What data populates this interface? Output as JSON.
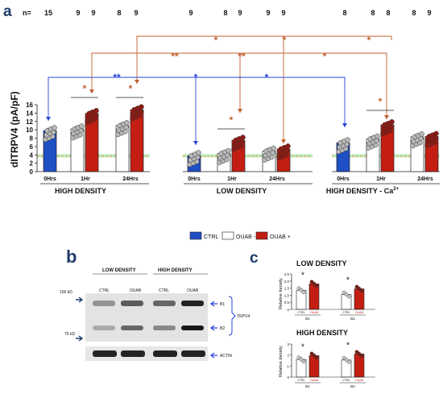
{
  "panel_letters": {
    "a": "a",
    "b": "b",
    "c": "c"
  },
  "n_label": "n=",
  "n_counts": [
    "15",
    "9",
    "9",
    "8",
    "9",
    "9",
    "8",
    "9",
    "9",
    "9",
    "8",
    "8",
    "8",
    "8",
    "9"
  ],
  "colors": {
    "blue": "#1f4fc4",
    "red": "#c41e12",
    "ctrl_fill": "#ffffff",
    "point": "#b8b8b8",
    "green_band": "#3bd06b",
    "orange_band": "#f2a43a",
    "sig_orange": "#c15f2e",
    "sig_blue": "#2a45d8"
  },
  "chart_data": [
    {
      "type": "bar",
      "ylabel": "dITRPV4 (pA/pF)",
      "ylim": [
        0,
        16
      ],
      "yticks": [
        "0",
        "2",
        "4",
        "6",
        "8",
        "10",
        "12",
        "14",
        "16"
      ],
      "groups": [
        {
          "name": "HIGH DENSITY",
          "categories": [
            "0Hrs",
            "1Hr",
            "24Hrs"
          ]
        },
        {
          "name": "LOW DENSITY",
          "categories": [
            "0Hrs",
            "1Hr",
            "24Hrs"
          ]
        },
        {
          "name": "HIGH DENSITY - Ca2+",
          "categories": [
            "0Hrs",
            "1Hr",
            "24Hrs"
          ]
        }
      ],
      "bars": [
        {
          "group": 0,
          "cat": "0Hrs",
          "kind": "blue",
          "value": 9.8
        },
        {
          "group": 0,
          "cat": "1Hr",
          "kind": "ctrl",
          "value": 10.2
        },
        {
          "group": 0,
          "cat": "1Hr",
          "kind": "ouab",
          "value": 13.9
        },
        {
          "group": 0,
          "cat": "24Hrs",
          "kind": "ctrl",
          "value": 11.0
        },
        {
          "group": 0,
          "cat": "24Hrs",
          "kind": "ouab",
          "value": 14.8
        },
        {
          "group": 1,
          "cat": "0Hrs",
          "kind": "blue",
          "value": 3.8
        },
        {
          "group": 1,
          "cat": "1Hr",
          "kind": "ctrl",
          "value": 4.3
        },
        {
          "group": 1,
          "cat": "1Hr",
          "kind": "ouab",
          "value": 7.5
        },
        {
          "group": 1,
          "cat": "24Hrs",
          "kind": "ctrl",
          "value": 4.9
        },
        {
          "group": 1,
          "cat": "24Hrs",
          "kind": "ouab",
          "value": 5.4
        },
        {
          "group": 2,
          "cat": "0Hrs",
          "kind": "blue",
          "value": 6.9
        },
        {
          "group": 2,
          "cat": "1Hr",
          "kind": "ctrl",
          "value": 7.8
        },
        {
          "group": 2,
          "cat": "1Hr",
          "kind": "ouab",
          "value": 11.2
        },
        {
          "group": 2,
          "cat": "24Hrs",
          "kind": "ctrl",
          "value": 8.3
        },
        {
          "group": 2,
          "cat": "24Hrs",
          "kind": "ouab",
          "value": 8.4
        }
      ],
      "baseline_band": [
        3.4,
        4.2
      ],
      "legend": [
        "CTRL",
        "OUAB -",
        "OUAB +"
      ],
      "significance": [
        "*",
        "*",
        "**",
        "*",
        "**",
        "*",
        "*",
        "*",
        "*",
        "*",
        "*",
        "*",
        "*"
      ]
    },
    {
      "type": "bar",
      "title": "LOW DENSITY",
      "ylabel": "Relative density",
      "ylim": [
        0,
        2.5
      ],
      "yticks": [
        "0",
        "0.5",
        "1.0",
        "1.5",
        "2.0",
        "2.5"
      ],
      "categories": [
        "B1",
        "B2"
      ],
      "series": [
        {
          "name": "CTRL",
          "values": [
            1.35,
            1.05
          ]
        },
        {
          "name": "OUAB",
          "values": [
            1.8,
            1.45
          ]
        }
      ],
      "significance": [
        "*",
        "*"
      ]
    },
    {
      "type": "bar",
      "title": "HIGH DENSITY",
      "ylabel": "Relative density",
      "ylim": [
        0,
        3
      ],
      "yticks": [
        "0",
        "1",
        "2",
        "3"
      ],
      "categories": [
        "B1",
        "B2"
      ],
      "series": [
        {
          "name": "CTRL",
          "values": [
            1.6,
            1.55
          ]
        },
        {
          "name": "OUAB",
          "values": [
            1.95,
            2.1
          ]
        }
      ],
      "significance": [
        "*",
        "*"
      ]
    }
  ],
  "blot": {
    "low_density": "LOW DENSITY",
    "high_density": "HIGH DENSITY",
    "lanes": [
      "CTRL",
      "OUAB",
      "CTRL",
      "OUAB"
    ],
    "mw_100": "100 kD",
    "mw_75": "75 kD",
    "b1": "B1",
    "b2": "B2",
    "trpv4": "TRPV4",
    "actin": "ACTIN"
  },
  "sub_labels": {
    "ctrl": "CTRL",
    "ouab": "OUAB"
  }
}
